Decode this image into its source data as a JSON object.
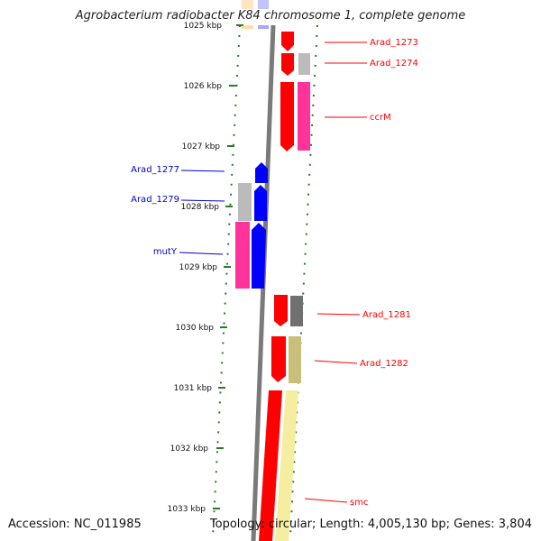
{
  "header": {
    "title": "Agrobacterium radiobacter K84 chromosome 1, complete genome"
  },
  "footer": {
    "accession": "Accession: NC_011985",
    "topology": "Topology: circular; Length: 4,005,130 bp; Genes: 3,804"
  },
  "colors": {
    "forward_label": "#ff0000",
    "reverse_label": "#0000cc",
    "red": "#ff0000",
    "blue": "#0000ff",
    "magenta": "#ff3399",
    "gray": "#bbbbbb",
    "darkgray": "#707070",
    "olive": "#c8c07a",
    "lightyellow": "#f5eda0",
    "orange": "#ff9900",
    "tick": "#2a7a2a"
  },
  "ticks": [
    "1025 kbp",
    "1026 kbp",
    "1027 kbp",
    "1028 kbp",
    "1029 kbp",
    "1030 kbp",
    "1031 kbp",
    "1032 kbp",
    "1033 kbp"
  ],
  "genes": [
    {
      "name": "Arad_1273",
      "strand": "forward"
    },
    {
      "name": "Arad_1274",
      "strand": "forward"
    },
    {
      "name": "ccrM",
      "strand": "forward"
    },
    {
      "name": "Arad_1277",
      "strand": "reverse"
    },
    {
      "name": "Arad_1279",
      "strand": "reverse"
    },
    {
      "name": "mutY",
      "strand": "reverse"
    },
    {
      "name": "Arad_1281",
      "strand": "forward"
    },
    {
      "name": "Arad_1282",
      "strand": "forward"
    },
    {
      "name": "smc",
      "strand": "forward"
    }
  ]
}
